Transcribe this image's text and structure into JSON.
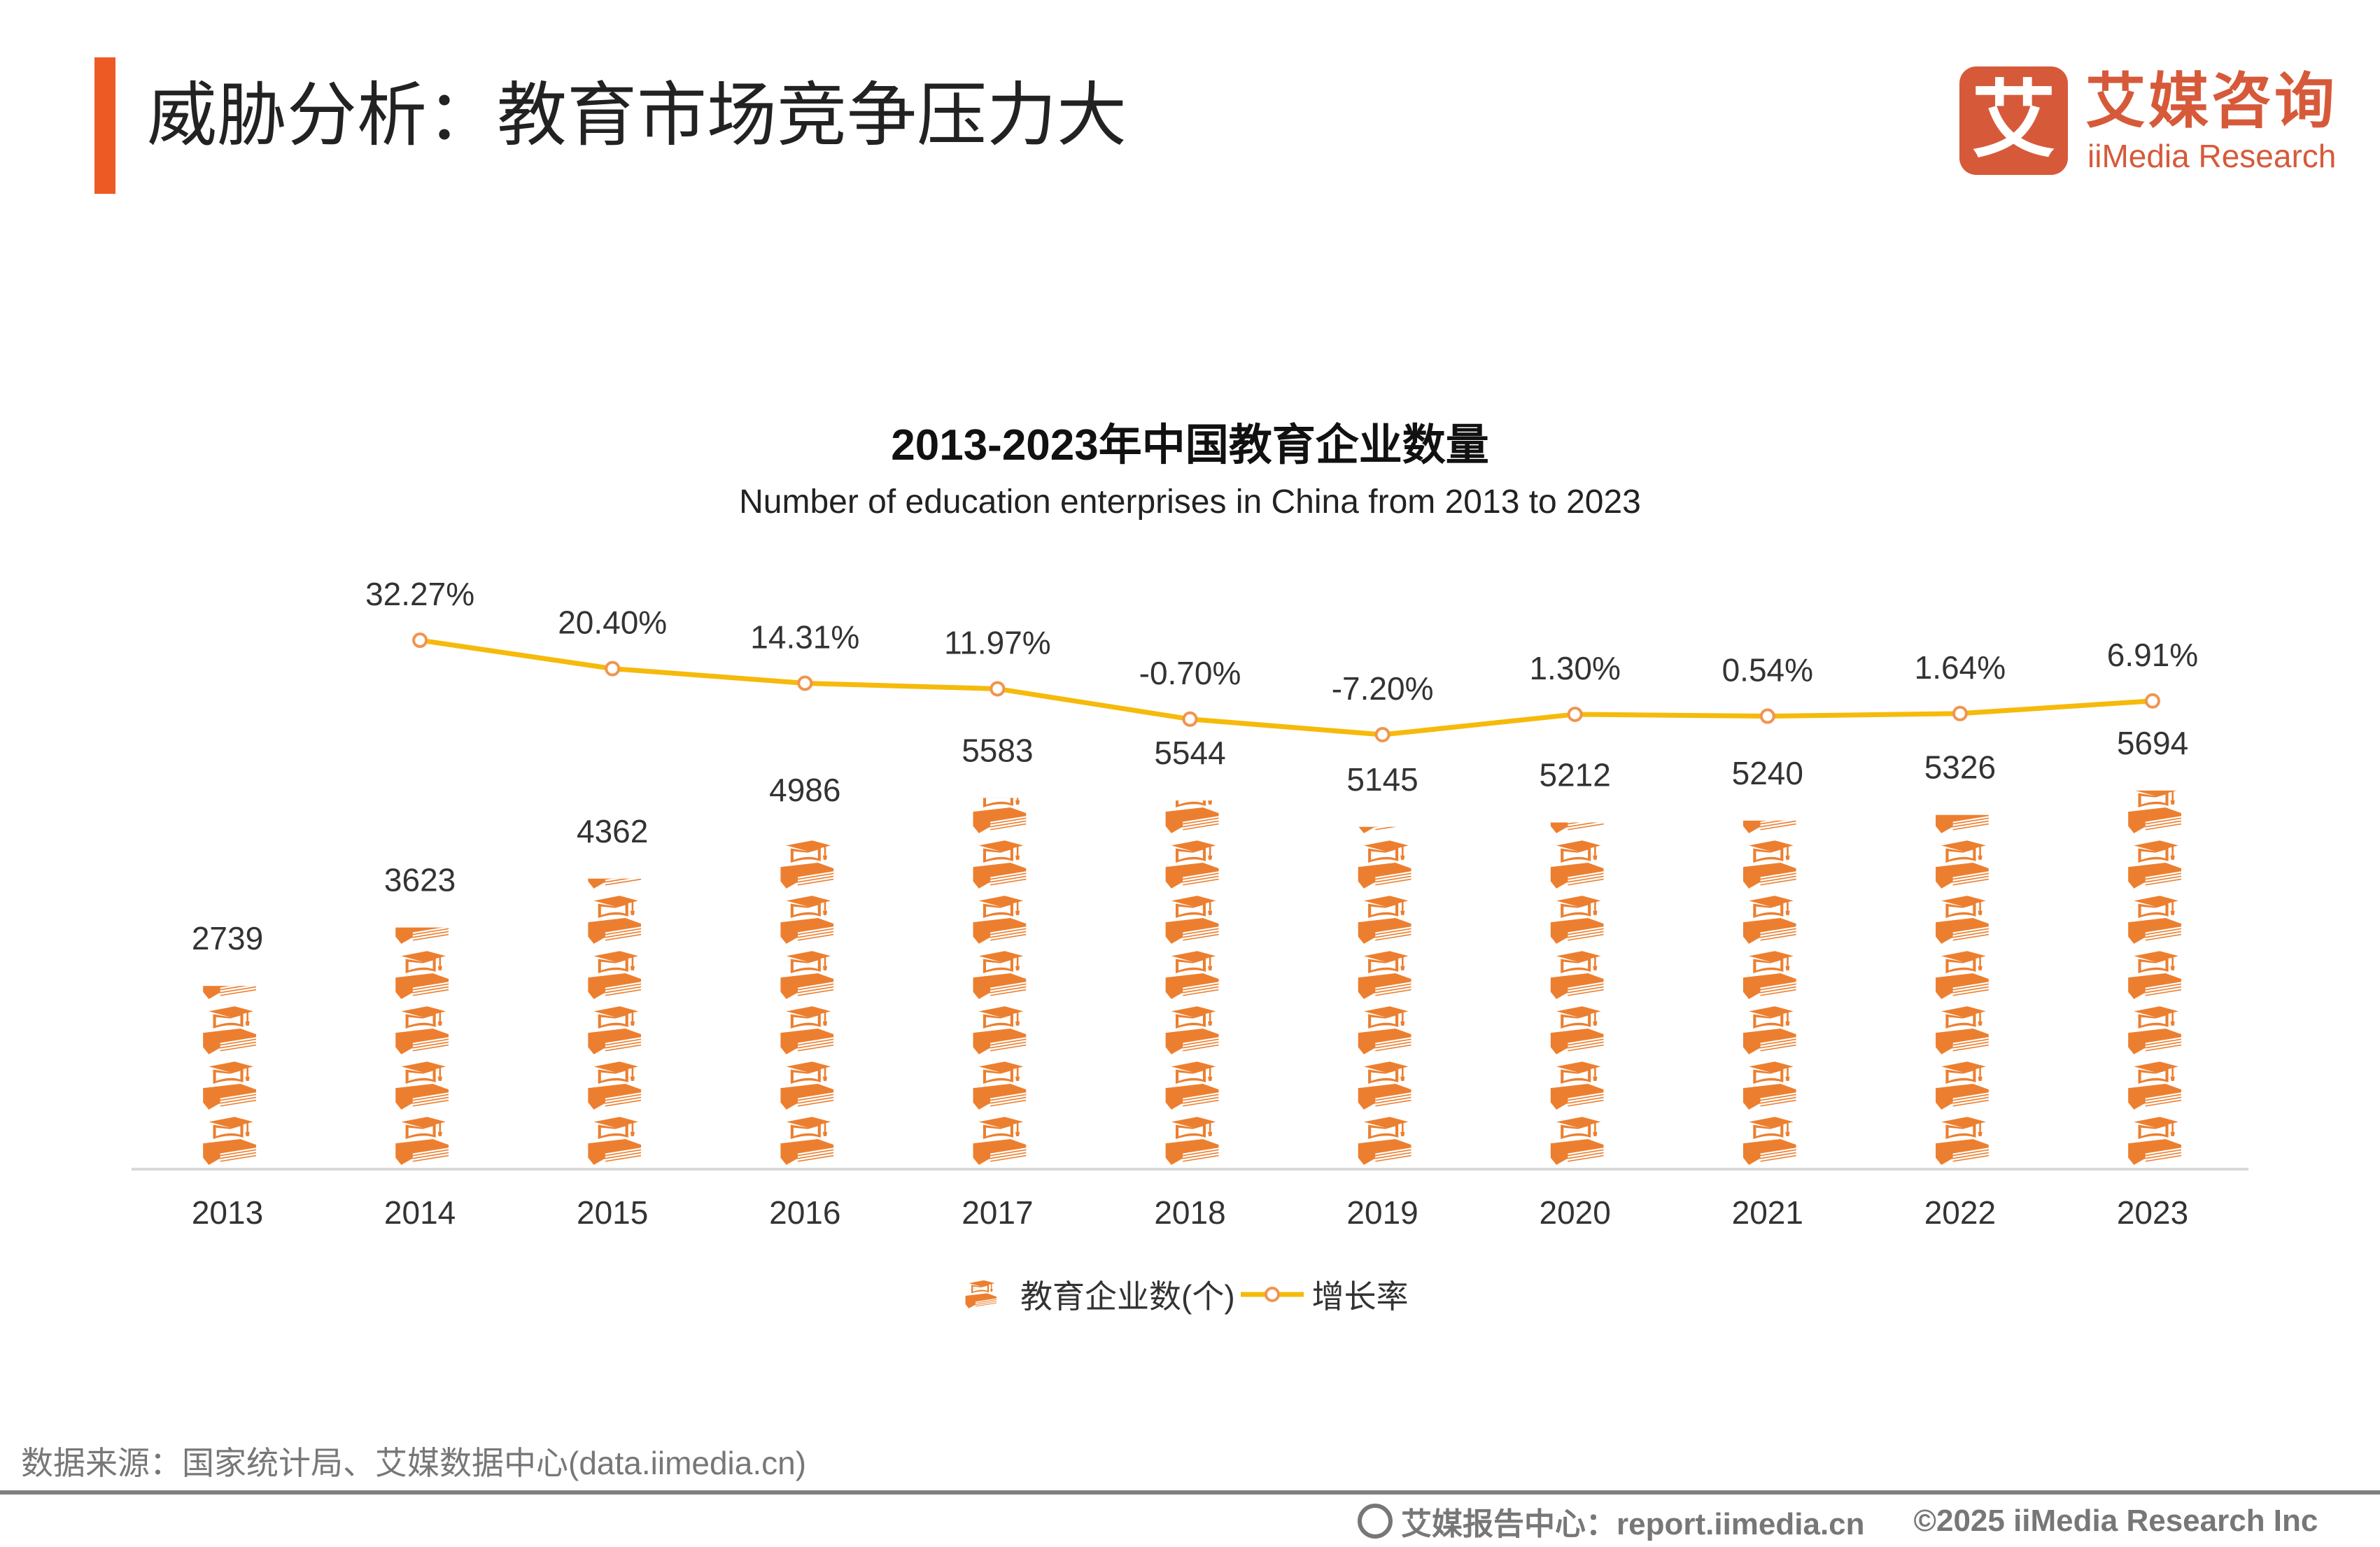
{
  "header": {
    "title": "威胁分析：教育市场竞争压力大",
    "accent_color": "#EE5A24"
  },
  "logo": {
    "mark": "艾",
    "cn": "艾媒咨询",
    "en": "iiMedia Research",
    "color": "#D65A3A"
  },
  "chart_data": {
    "type": "bar",
    "subtype": "pictogram-bar-with-line",
    "title": "2013-2023年中国教育企业数量",
    "subtitle": "Number of education enterprises in China from 2013 to 2023",
    "categories": [
      "2013",
      "2014",
      "2015",
      "2016",
      "2017",
      "2018",
      "2019",
      "2020",
      "2021",
      "2022",
      "2023"
    ],
    "series": [
      {
        "name": "教育企业数(个)",
        "type": "pictogram-bar",
        "color": "#EC7F2F",
        "icon": "graduation-cap-on-book-icon",
        "values": [
          2739,
          3623,
          4362,
          4986,
          5583,
          5544,
          5145,
          5212,
          5240,
          5326,
          5694
        ],
        "labels": [
          "2739",
          "3623",
          "4362",
          "4986",
          "5583",
          "5544",
          "5145",
          "5212",
          "5240",
          "5326",
          "5694"
        ]
      },
      {
        "name": "增长率",
        "type": "line",
        "color": "#F5BA0A",
        "marker_color": "#F0954F",
        "values": [
          null,
          32.27,
          20.4,
          14.31,
          11.97,
          -0.7,
          -7.2,
          1.3,
          0.54,
          1.64,
          6.91
        ],
        "labels": [
          "",
          "32.27%",
          "20.40%",
          "14.31%",
          "11.97%",
          "-0.70%",
          "-7.20%",
          "1.30%",
          "0.54%",
          "1.64%",
          "6.91%"
        ]
      }
    ],
    "legend_position": "bottom",
    "grid": false
  },
  "legend": {
    "bar_label": "教育企业数(个)",
    "line_label": "增长率"
  },
  "source": "数据来源：国家统计局、艾媒数据中心(data.iimedia.cn)",
  "footer": {
    "report_center": "艾媒报告中心：report.iimedia.cn",
    "copyright": "©2025  iiMedia Research  Inc"
  }
}
